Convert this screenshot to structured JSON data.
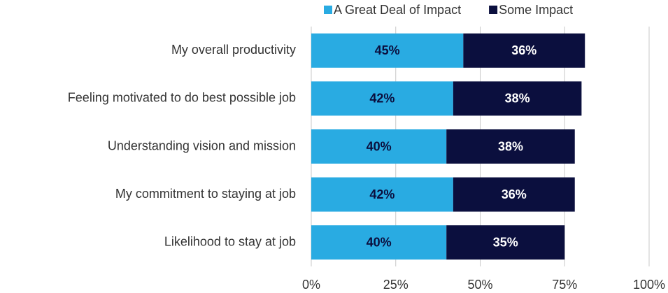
{
  "chart_data": {
    "type": "bar",
    "orientation": "horizontal",
    "stacked": true,
    "categories": [
      "My overall productivity",
      "Feeling motivated to do best possible job",
      "Understanding vision and mission",
      "My commitment to staying at job",
      "Likelihood to stay at job"
    ],
    "series": [
      {
        "name": "A Great Deal of Impact",
        "color": "#29abe2",
        "label_color": "#0b0f3e",
        "values": [
          45,
          42,
          40,
          42,
          40
        ],
        "value_labels": [
          "45%",
          "42%",
          "40%",
          "42%",
          "40%"
        ]
      },
      {
        "name": "Some Impact",
        "color": "#0b0f3e",
        "label_color": "#ffffff",
        "values": [
          36,
          38,
          38,
          36,
          35
        ],
        "value_labels": [
          "36%",
          "38%",
          "38%",
          "36%",
          "35%"
        ]
      }
    ],
    "xlim": [
      0,
      100
    ],
    "xticks": [
      {
        "value": 0,
        "label": "0%"
      },
      {
        "value": 25,
        "label": "25%"
      },
      {
        "value": 50,
        "label": "50%"
      },
      {
        "value": 75,
        "label": "75%"
      },
      {
        "value": 100,
        "label": "100%"
      }
    ],
    "grid": true,
    "legend": "top"
  }
}
